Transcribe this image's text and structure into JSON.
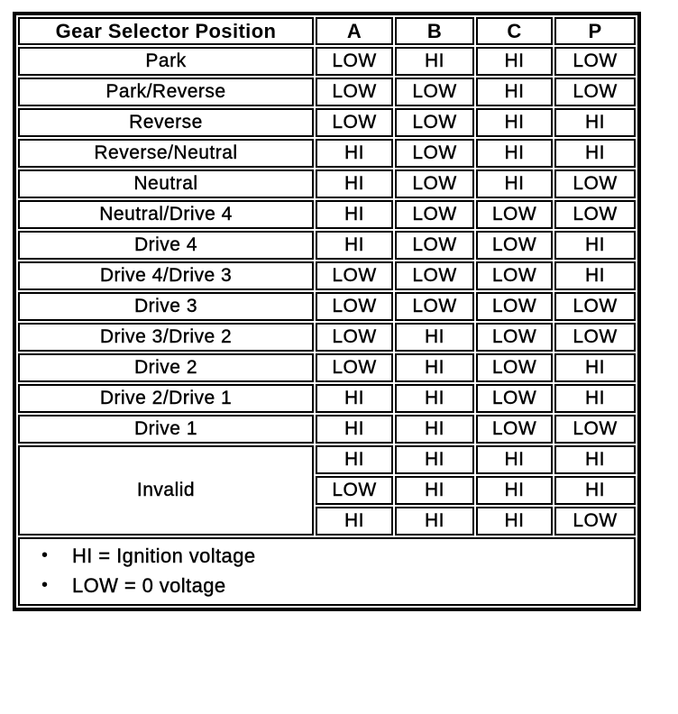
{
  "table": {
    "header": [
      "Gear Selector Position",
      "A",
      "B",
      "C",
      "P"
    ],
    "rows": [
      {
        "position": "Park",
        "values": [
          "LOW",
          "HI",
          "HI",
          "LOW"
        ]
      },
      {
        "position": "Park/Reverse",
        "values": [
          "LOW",
          "LOW",
          "HI",
          "LOW"
        ]
      },
      {
        "position": "Reverse",
        "values": [
          "LOW",
          "LOW",
          "HI",
          "HI"
        ]
      },
      {
        "position": "Reverse/Neutral",
        "values": [
          "HI",
          "LOW",
          "HI",
          "HI"
        ]
      },
      {
        "position": "Neutral",
        "values": [
          "HI",
          "LOW",
          "HI",
          "LOW"
        ]
      },
      {
        "position": "Neutral/Drive 4",
        "values": [
          "HI",
          "LOW",
          "LOW",
          "LOW"
        ]
      },
      {
        "position": "Drive 4",
        "values": [
          "HI",
          "LOW",
          "LOW",
          "HI"
        ]
      },
      {
        "position": "Drive 4/Drive 3",
        "values": [
          "LOW",
          "LOW",
          "LOW",
          "HI"
        ]
      },
      {
        "position": "Drive 3",
        "values": [
          "LOW",
          "LOW",
          "LOW",
          "LOW"
        ]
      },
      {
        "position": "Drive 3/Drive 2",
        "values": [
          "LOW",
          "HI",
          "LOW",
          "LOW"
        ]
      },
      {
        "position": "Drive 2",
        "values": [
          "LOW",
          "HI",
          "LOW",
          "HI"
        ]
      },
      {
        "position": "Drive 2/Drive 1",
        "values": [
          "HI",
          "HI",
          "LOW",
          "HI"
        ]
      },
      {
        "position": "Drive 1",
        "values": [
          "HI",
          "HI",
          "LOW",
          "LOW"
        ]
      }
    ],
    "invalid_group": {
      "position": "Invalid",
      "rows": [
        [
          "HI",
          "HI",
          "HI",
          "HI"
        ],
        [
          "LOW",
          "HI",
          "HI",
          "HI"
        ],
        [
          "HI",
          "HI",
          "HI",
          "LOW"
        ]
      ]
    },
    "legend": {
      "bullet": "•",
      "items": [
        "HI = Ignition voltage",
        "LOW = 0 voltage"
      ]
    }
  }
}
